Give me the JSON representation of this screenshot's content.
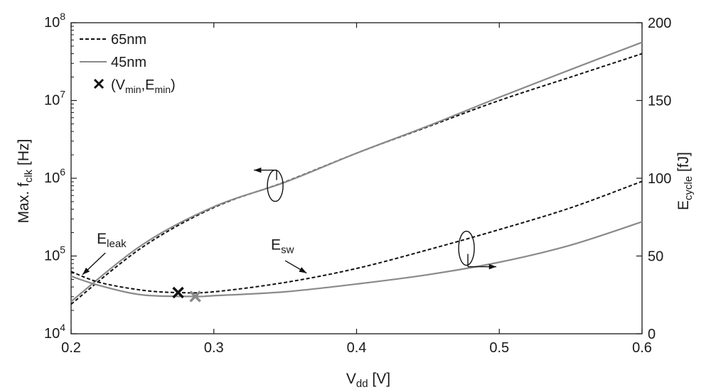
{
  "chart_data": {
    "type": "line",
    "title": "",
    "xlabel": {
      "main": "V",
      "sub": "dd",
      "unit": " [V]"
    },
    "ylabel_left": {
      "main": "Max. f",
      "sub": "clk",
      "unit": " [Hz]"
    },
    "ylabel_right": {
      "main": "E",
      "sub": "cycle",
      "unit": " [fJ]"
    },
    "xlim": [
      0.2,
      0.6
    ],
    "ylim_left": [
      10000,
      100000000
    ],
    "yscale_left": "log",
    "ylim_right": [
      0,
      200
    ],
    "yscale_right": "linear",
    "grid": false,
    "legend_position": "top-left",
    "x_ticks": [
      "0.2",
      "0.3",
      "0.4",
      "0.5",
      "0.6"
    ],
    "left_ticks": [
      {
        "base": "10",
        "exp": "4"
      },
      {
        "base": "10",
        "exp": "5"
      },
      {
        "base": "10",
        "exp": "6"
      },
      {
        "base": "10",
        "exp": "7"
      },
      {
        "base": "10",
        "exp": "8"
      }
    ],
    "right_ticks": [
      "0",
      "50",
      "100",
      "150",
      "200"
    ],
    "legend": [
      {
        "label": "65nm",
        "color": "#111111",
        "style": "dashed"
      },
      {
        "label": "45nm",
        "color": "#8a8a8a",
        "style": "solid"
      },
      {
        "label": {
          "open": "(V",
          "s1": "min",
          "mid": ",E",
          "s2": "min",
          "close": ")"
        },
        "marker": "x",
        "color": "#111111"
      }
    ],
    "series": [
      {
        "name": "65nm",
        "axis": "left",
        "color": "#111111",
        "style": "dashed",
        "x": [
          0.2,
          0.25,
          0.3,
          0.35,
          0.4,
          0.45,
          0.5,
          0.55,
          0.6
        ],
        "y": [
          24000,
          130000,
          420000,
          900000,
          2100000,
          4600000,
          10000000,
          20000000,
          40000000
        ]
      },
      {
        "name": "45nm",
        "axis": "left",
        "color": "#8a8a8a",
        "style": "solid",
        "x": [
          0.2,
          0.25,
          0.3,
          0.35,
          0.4,
          0.45,
          0.5,
          0.55,
          0.6
        ],
        "y": [
          26000,
          140000,
          430000,
          890000,
          2100000,
          4700000,
          11000000,
          25000000,
          56000000
        ]
      },
      {
        "name": "65nm",
        "axis": "right",
        "color": "#111111",
        "style": "dashed",
        "x": [
          0.2,
          0.22,
          0.25,
          0.275,
          0.3,
          0.35,
          0.4,
          0.45,
          0.5,
          0.55,
          0.6
        ],
        "y": [
          40,
          33,
          28,
          26.5,
          27,
          33,
          42,
          54,
          67,
          81,
          98
        ]
      },
      {
        "name": "45nm",
        "axis": "right",
        "color": "#8a8a8a",
        "style": "solid",
        "x": [
          0.2,
          0.22,
          0.25,
          0.287,
          0.3,
          0.35,
          0.4,
          0.45,
          0.5,
          0.55,
          0.6
        ],
        "y": [
          37,
          31,
          25,
          24,
          24.5,
          27,
          32,
          38,
          46,
          57,
          72
        ]
      }
    ],
    "minima": [
      {
        "series": "65nm",
        "x": 0.275,
        "y": 26.5,
        "color": "#111111"
      },
      {
        "series": "45nm",
        "x": 0.287,
        "y": 24,
        "color": "#8a8a8a"
      }
    ],
    "annotations": [
      {
        "main": "E",
        "sub": "leak",
        "target_x": 0.208,
        "target_y": 38,
        "axis": "right"
      },
      {
        "main": "E",
        "sub": "sw",
        "target_x": 0.365,
        "target_y": 39,
        "axis": "right"
      },
      {
        "label": "left-axis",
        "ellipse_x": 0.343,
        "ellipse_y": 800000,
        "axis": "left",
        "arrow": "left"
      },
      {
        "label": "right-axis",
        "ellipse_x": 0.477,
        "ellipse_y": 55,
        "axis": "right",
        "arrow": "right"
      }
    ]
  }
}
